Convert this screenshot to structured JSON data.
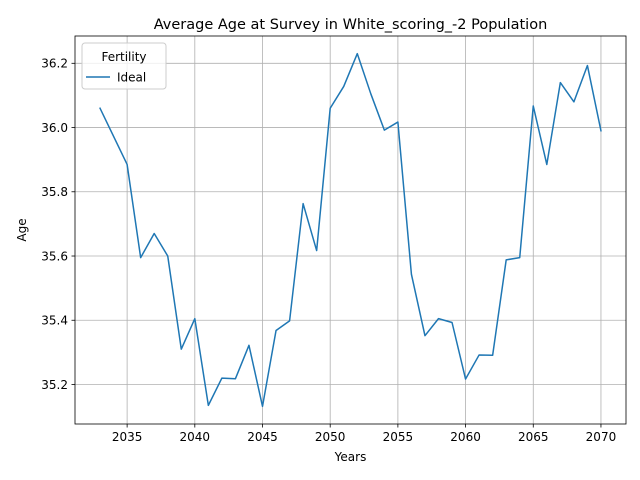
{
  "chart_data": {
    "type": "line",
    "title": "Average Age at Survey in White_scoring_-2 Population",
    "xlabel": "Years",
    "ylabel": "Age",
    "xlim": [
      2031.15,
      2071.85
    ],
    "ylim": [
      35.077,
      36.285
    ],
    "xticks": [
      2035,
      2040,
      2045,
      2050,
      2055,
      2060,
      2065,
      2070
    ],
    "yticks": [
      35.2,
      35.4,
      35.6,
      35.8,
      36.0,
      36.2
    ],
    "grid": true,
    "legend": {
      "title": "Fertility",
      "placement": "top-left"
    },
    "series": [
      {
        "name": "Ideal",
        "color": "#1f77b4",
        "x": [
          2033,
          2035,
          2036,
          2037,
          2038,
          2039,
          2040,
          2041,
          2042,
          2043,
          2044,
          2045,
          2046,
          2047,
          2048,
          2049,
          2050,
          2051,
          2052,
          2053,
          2054,
          2055,
          2056,
          2057,
          2058,
          2059,
          2060,
          2061,
          2062,
          2063,
          2064,
          2065,
          2066,
          2067,
          2068,
          2069,
          2070
        ],
        "y": [
          36.06,
          35.885,
          35.595,
          35.67,
          35.6,
          35.31,
          35.405,
          35.135,
          35.22,
          35.218,
          35.322,
          35.132,
          35.368,
          35.398,
          35.763,
          35.617,
          36.06,
          36.128,
          36.23,
          36.105,
          35.992,
          36.017,
          35.543,
          35.352,
          35.405,
          35.393,
          35.217,
          35.292,
          35.291,
          35.588,
          35.595,
          36.067,
          35.885,
          36.14,
          36.08,
          36.193,
          35.99
        ]
      }
    ]
  }
}
